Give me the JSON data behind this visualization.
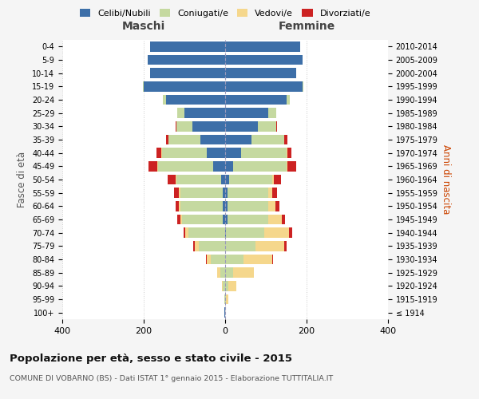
{
  "age_groups": [
    "100+",
    "95-99",
    "90-94",
    "85-89",
    "80-84",
    "75-79",
    "70-74",
    "65-69",
    "60-64",
    "55-59",
    "50-54",
    "45-49",
    "40-44",
    "35-39",
    "30-34",
    "25-29",
    "20-24",
    "15-19",
    "10-14",
    "5-9",
    "0-4"
  ],
  "birth_years": [
    "≤ 1914",
    "1915-1919",
    "1920-1924",
    "1925-1929",
    "1930-1934",
    "1935-1939",
    "1940-1944",
    "1945-1949",
    "1950-1954",
    "1955-1959",
    "1960-1964",
    "1965-1969",
    "1970-1974",
    "1975-1979",
    "1980-1984",
    "1985-1989",
    "1990-1994",
    "1995-1999",
    "2000-2004",
    "2005-2009",
    "2010-2014"
  ],
  "males": {
    "celibi": [
      1,
      0,
      0,
      0,
      0,
      0,
      0,
      5,
      5,
      5,
      10,
      30,
      45,
      60,
      80,
      100,
      145,
      200,
      185,
      190,
      185
    ],
    "coniugati": [
      0,
      2,
      5,
      12,
      35,
      65,
      90,
      100,
      105,
      105,
      110,
      135,
      110,
      80,
      40,
      18,
      8,
      2,
      0,
      0,
      0
    ],
    "vedovi": [
      0,
      0,
      2,
      8,
      10,
      10,
      8,
      5,
      3,
      3,
      2,
      2,
      2,
      0,
      0,
      0,
      0,
      0,
      0,
      0,
      0
    ],
    "divorziati": [
      0,
      0,
      0,
      0,
      2,
      3,
      3,
      8,
      8,
      12,
      20,
      22,
      12,
      5,
      2,
      0,
      0,
      0,
      0,
      0,
      0
    ]
  },
  "females": {
    "nubili": [
      0,
      0,
      0,
      0,
      0,
      0,
      2,
      5,
      5,
      5,
      10,
      20,
      40,
      65,
      80,
      105,
      150,
      190,
      175,
      190,
      185
    ],
    "coniugate": [
      0,
      2,
      8,
      20,
      45,
      75,
      95,
      100,
      100,
      100,
      105,
      130,
      110,
      80,
      45,
      20,
      8,
      3,
      0,
      0,
      0
    ],
    "vedove": [
      0,
      5,
      20,
      50,
      70,
      70,
      60,
      35,
      18,
      10,
      5,
      3,
      2,
      0,
      0,
      0,
      0,
      0,
      0,
      0,
      0
    ],
    "divorziate": [
      0,
      0,
      0,
      0,
      2,
      5,
      8,
      8,
      10,
      12,
      18,
      22,
      10,
      8,
      2,
      0,
      0,
      0,
      0,
      0,
      0
    ]
  },
  "color_celibi": "#3d6fa8",
  "color_coniugati": "#c5d9a0",
  "color_vedovi": "#f5d78c",
  "color_divorziati": "#cc2222",
  "title": "Popolazione per età, sesso e stato civile - 2015",
  "subtitle": "COMUNE DI VOBARNO (BS) - Dati ISTAT 1° gennaio 2015 - Elaborazione TUTTITALIA.IT",
  "xlabel_left": "Maschi",
  "xlabel_right": "Femmine",
  "ylabel_left": "Fasce di età",
  "ylabel_right": "Anni di nascita",
  "xlim": 400,
  "bg_color": "#f5f5f5",
  "plot_bg": "#ffffff"
}
